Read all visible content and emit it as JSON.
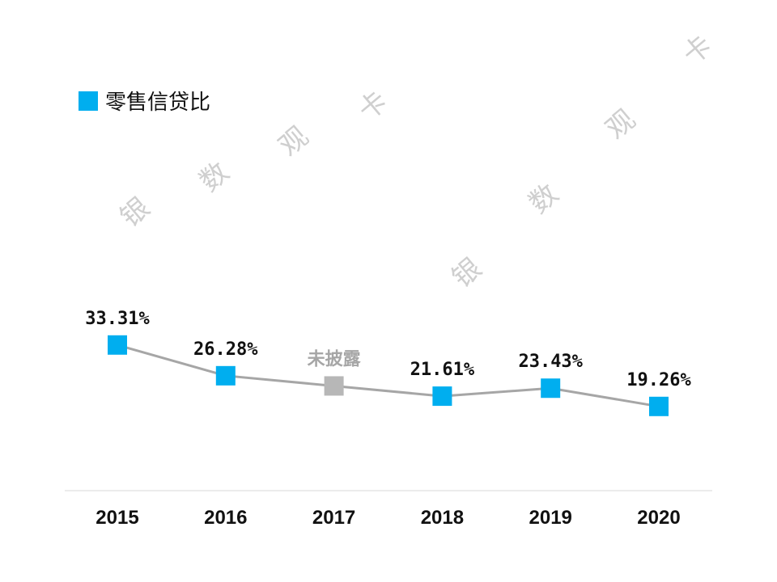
{
  "chart_data": {
    "type": "line",
    "title": "",
    "xlabel": "",
    "ylabel": "",
    "ylim": [
      0,
      45
    ],
    "grid": false,
    "legend_placement": "top-left",
    "categories": [
      "2015",
      "2016",
      "2017",
      "2018",
      "2019",
      "2020"
    ],
    "series": [
      {
        "name": "零售信贷比",
        "values": [
          33.31,
          26.28,
          null,
          21.61,
          23.43,
          19.26
        ],
        "labels": [
          "33.31%",
          "26.28%",
          "未披露",
          "21.61%",
          "23.43%",
          "19.26%"
        ]
      }
    ],
    "colors": {
      "marker": "#00AEEF",
      "missing_marker": "#B7B7B7",
      "line": "#A6A6A6",
      "label": "#111111",
      "missing_label": "#A6A6A6",
      "axis": "#D9D9D9"
    }
  },
  "watermark": "银数观卡"
}
